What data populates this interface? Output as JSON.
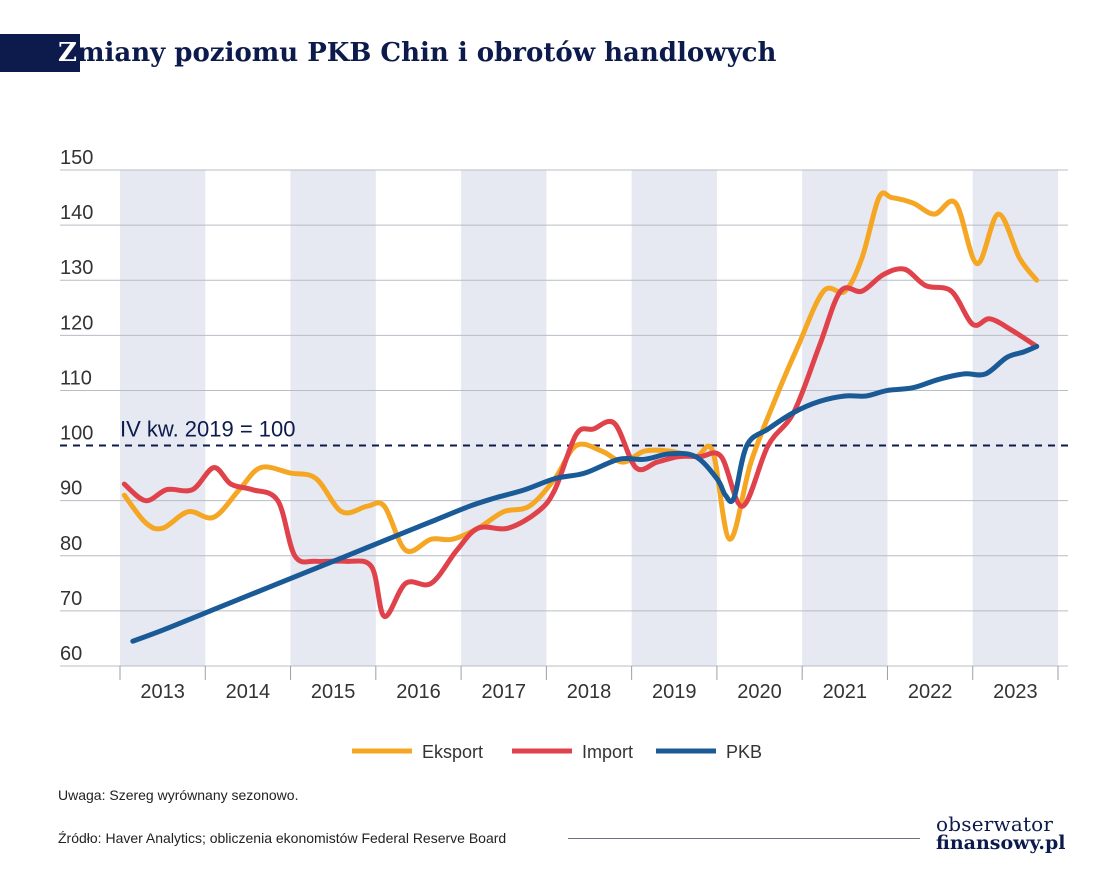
{
  "header": {
    "title_first": "Z",
    "title_rest": "miany poziomu PKB Chin i obrotów handlowych"
  },
  "chart_data": {
    "type": "line",
    "title": "Zmiany poziomu PKB Chin i obrotów handlowych",
    "xlabel": "",
    "ylabel": "",
    "xlim": [
      2013,
      2024
    ],
    "ylim": [
      60,
      150
    ],
    "yticks": [
      60,
      70,
      80,
      90,
      100,
      110,
      120,
      130,
      140,
      150
    ],
    "years": [
      "2013",
      "2014",
      "2015",
      "2016",
      "2017",
      "2018",
      "2019",
      "2020",
      "2021",
      "2022",
      "2023"
    ],
    "shaded_years": [
      "2013",
      "2015",
      "2017",
      "2019",
      "2021",
      "2023"
    ],
    "grid": true,
    "legend": "bottom-center",
    "reference_line": {
      "value": 100,
      "label": "IV kw. 2019 = 100",
      "style": "dashed"
    },
    "series": [
      {
        "name": "Eksport",
        "color": "#f5a623",
        "x": [
          2013.05,
          2013.3,
          2013.5,
          2013.8,
          2014.1,
          2014.4,
          2014.65,
          2015,
          2015.3,
          2015.6,
          2015.9,
          2016.1,
          2016.35,
          2016.65,
          2016.9,
          2017.2,
          2017.5,
          2017.8,
          2018.1,
          2018.35,
          2018.65,
          2018.9,
          2019.15,
          2019.45,
          2019.75,
          2019.95,
          2020.15,
          2020.4,
          2020.7,
          2020.95,
          2021.25,
          2021.5,
          2021.7,
          2021.9,
          2022.05,
          2022.3,
          2022.55,
          2022.8,
          2023.05,
          2023.3,
          2023.55,
          2023.75
        ],
        "values": [
          91,
          86,
          85,
          88,
          87,
          92,
          96,
          95,
          94,
          88,
          89,
          89,
          81,
          83,
          83,
          85,
          88,
          89,
          94,
          100,
          99,
          97,
          99,
          99,
          98,
          99,
          83,
          97,
          109,
          118,
          128,
          128,
          134,
          145,
          145,
          144,
          142,
          144,
          133,
          142,
          134,
          130
        ]
      },
      {
        "name": "Import",
        "color": "#e0424b",
        "x": [
          2013.05,
          2013.3,
          2013.55,
          2013.85,
          2014.1,
          2014.3,
          2014.55,
          2014.85,
          2015.05,
          2015.3,
          2015.65,
          2015.95,
          2016.1,
          2016.35,
          2016.65,
          2016.95,
          2017.2,
          2017.55,
          2017.9,
          2018.1,
          2018.35,
          2018.55,
          2018.8,
          2019.05,
          2019.3,
          2019.55,
          2019.8,
          2020.05,
          2020.3,
          2020.6,
          2020.9,
          2021.2,
          2021.45,
          2021.7,
          2021.95,
          2022.2,
          2022.45,
          2022.75,
          2023.0,
          2023.2,
          2023.45,
          2023.75
        ],
        "values": [
          93,
          90,
          92,
          92,
          96,
          93,
          92,
          90,
          80,
          79,
          79,
          78,
          69,
          75,
          75,
          81,
          85,
          85,
          88,
          92,
          102,
          103,
          104,
          96,
          97,
          98,
          98,
          98,
          89,
          100,
          106,
          118,
          128,
          128,
          131,
          132,
          129,
          128,
          122,
          123,
          121,
          118
        ]
      },
      {
        "name": "PKB",
        "color": "#1a5a96",
        "x": [
          2013.15,
          2013.5,
          2013.9,
          2014.3,
          2014.7,
          2015.1,
          2015.5,
          2015.9,
          2016.3,
          2016.7,
          2017.1,
          2017.4,
          2017.75,
          2018.1,
          2018.45,
          2018.85,
          2019.15,
          2019.45,
          2019.75,
          2020.0,
          2020.1,
          2020.2,
          2020.35,
          2020.6,
          2020.9,
          2021.2,
          2021.5,
          2021.75,
          2022.0,
          2022.3,
          2022.6,
          2022.9,
          2023.15,
          2023.4,
          2023.6,
          2023.75
        ],
        "values": [
          64.5,
          66.5,
          69,
          71.5,
          74,
          76.5,
          79,
          81.5,
          84,
          86.5,
          89,
          90.5,
          92,
          94,
          95,
          97.5,
          97.5,
          98.5,
          98,
          94,
          91,
          90.5,
          100,
          103,
          106,
          108,
          109,
          109,
          110,
          110.5,
          112,
          113,
          113,
          116,
          117,
          118
        ]
      }
    ]
  },
  "note": "Uwaga: Szereg wyrównany sezonowo.",
  "source": "Źródło: Haver Analytics; obliczenia ekonomistów Federal Reserve Board",
  "logo": {
    "line1": "obserwator",
    "line2": "finansowy.pl"
  }
}
